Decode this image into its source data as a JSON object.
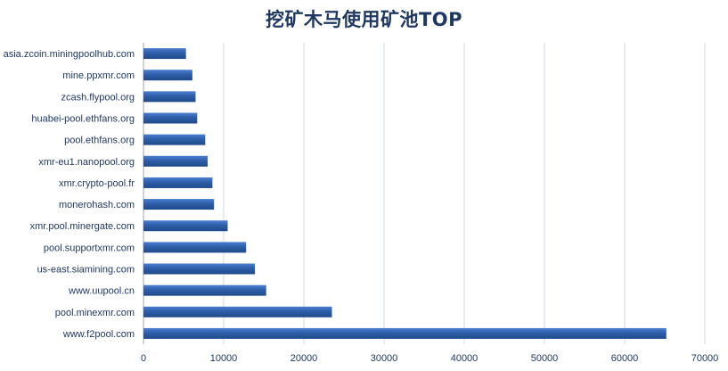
{
  "chart_data": {
    "type": "bar",
    "orientation": "horizontal",
    "title": "挖矿木马使用矿池TOP",
    "categories": [
      "www.f2pool.com",
      "pool.minexmr.com",
      "www.uupool.cn",
      "us-east.siamining.com",
      "pool.supportxmr.com",
      "xmr.pool.minergate.com",
      "monerohash.com",
      "xmr.crypto-pool.fr",
      "xmr-eu1.nanopool.org",
      "pool.ethfans.org",
      "huabei-pool.ethfans.org",
      "zcash.flypool.org",
      "mine.ppxmr.com",
      "asia.zcoin.miningpoolhub.com"
    ],
    "values": [
      65200,
      23500,
      15300,
      13900,
      12800,
      10500,
      8800,
      8600,
      8000,
      7700,
      6700,
      6500,
      6100,
      5300
    ],
    "xlim": [
      0,
      70000
    ],
    "xticks": [
      "0",
      "10000",
      "20000",
      "30000",
      "40000",
      "50000",
      "60000",
      "70000"
    ],
    "xlabel": "",
    "ylabel": "",
    "grid": "vertical",
    "legend": "none",
    "bar_color": "#2e5ea8",
    "bar_color_light": "#4a7fd0",
    "bar_color_dark": "#1f4a8a"
  }
}
